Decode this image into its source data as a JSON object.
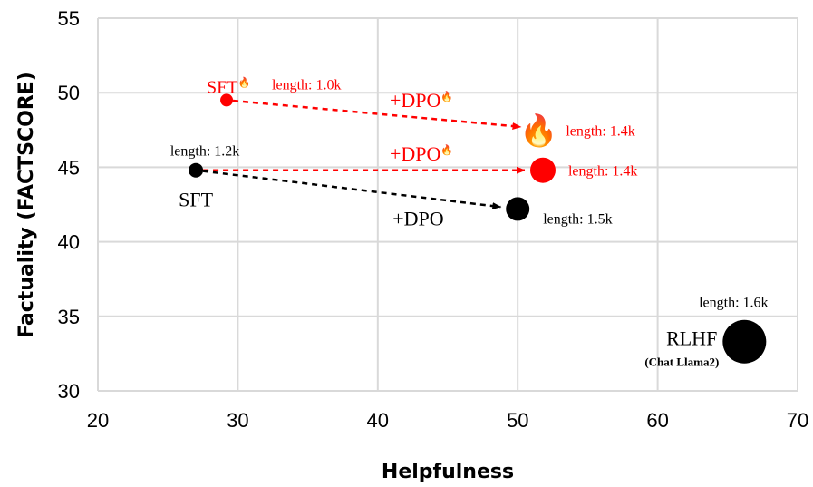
{
  "chart_data": {
    "type": "scatter",
    "xlabel": "Helpfulness",
    "ylabel": "Factuality (FACTSCORE)",
    "xlim": [
      20,
      70
    ],
    "ylim": [
      30,
      55
    ],
    "xticks": [
      20,
      30,
      40,
      50,
      60,
      70
    ],
    "yticks": [
      30,
      35,
      40,
      45,
      50,
      55
    ],
    "grid": true,
    "colors": {
      "red": "#ff0000",
      "black": "#000000",
      "grid": "#d9d9d9"
    },
    "points": [
      {
        "label": "SFT",
        "x": 29.2,
        "y": 49.5,
        "color": "#ff0000",
        "fire": true,
        "length": "length: 1.0k"
      },
      {
        "label": "SFT",
        "x": 27.0,
        "y": 44.8,
        "color": "#000000",
        "fire": false,
        "length": "length: 1.2k"
      },
      {
        "label": "+DPO",
        "x": 51.5,
        "y": 47.6,
        "color": "#ff0000",
        "fire": true,
        "marker": "fire-icon",
        "length": "length: 1.4k"
      },
      {
        "label": "+DPO",
        "x": 51.8,
        "y": 44.8,
        "color": "#ff0000",
        "fire": true,
        "length": "length: 1.4k"
      },
      {
        "label": "+DPO",
        "x": 50.0,
        "y": 42.2,
        "color": "#000000",
        "fire": false,
        "length": "length: 1.5k"
      },
      {
        "label": "RLHF",
        "sublabel": "(Chat Llama2)",
        "x": 66.2,
        "y": 33.3,
        "color": "#000000",
        "fire": false,
        "length": "length: 1.6k"
      }
    ],
    "arrows": [
      {
        "from": 0,
        "to": 2,
        "color": "#ff0000",
        "style": "dashed"
      },
      {
        "from": 1,
        "to": 3,
        "color": "#ff0000",
        "style": "dashed"
      },
      {
        "from": 1,
        "to": 4,
        "color": "#000000",
        "style": "dashed"
      }
    ]
  }
}
